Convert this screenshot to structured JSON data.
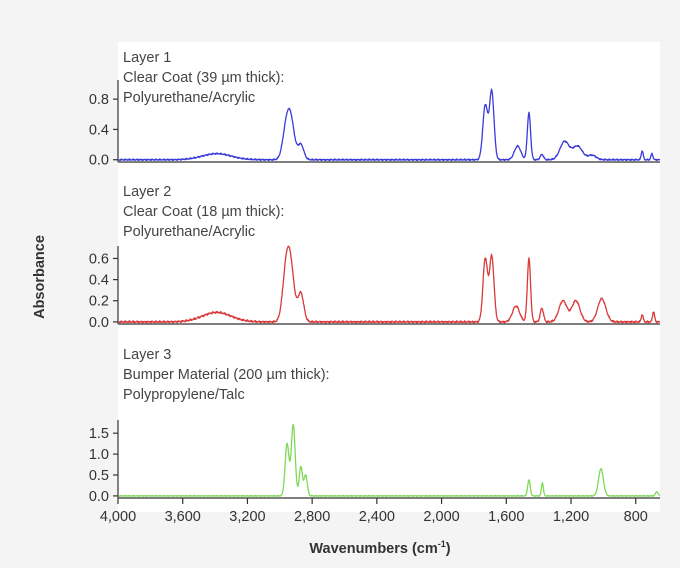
{
  "chart_data": {
    "type": "line",
    "y_axis_title": "Absorbance",
    "x_axis": {
      "title": "Wavenumbers (cm",
      "title_superscript": "-1",
      "title_suffix": ")",
      "range": [
        4000,
        650
      ],
      "reversed": true,
      "ticks": [
        4000,
        3600,
        3200,
        2800,
        2400,
        2000,
        1600,
        1200,
        800
      ],
      "tick_labels": [
        "4,000",
        "3,600",
        "3,200",
        "2,800",
        "2,400",
        "2,000",
        "1,600",
        "1,200",
        "800"
      ]
    },
    "panels": [
      {
        "label_lines": [
          "Layer 1",
          "Clear Coat (39 µm thick):",
          "Polyurethane/Acrylic"
        ],
        "color": "#3b3bdb",
        "ylim": [
          -0.03,
          1.0
        ],
        "y_ticks": [
          0.0,
          0.4,
          0.8
        ],
        "y_tick_labels": [
          "0.0",
          "0.4",
          "0.8"
        ],
        "peaks": [
          {
            "x": 3390,
            "h": 0.08,
            "w": 90
          },
          {
            "x": 2960,
            "h": 0.4,
            "w": 22
          },
          {
            "x": 2930,
            "h": 0.45,
            "w": 22
          },
          {
            "x": 2870,
            "h": 0.2,
            "w": 18
          },
          {
            "x": 1730,
            "h": 0.72,
            "w": 15
          },
          {
            "x": 1690,
            "h": 0.9,
            "w": 14
          },
          {
            "x": 1530,
            "h": 0.18,
            "w": 20
          },
          {
            "x": 1460,
            "h": 0.62,
            "w": 10
          },
          {
            "x": 1380,
            "h": 0.07,
            "w": 10
          },
          {
            "x": 1240,
            "h": 0.24,
            "w": 28
          },
          {
            "x": 1160,
            "h": 0.18,
            "w": 30
          },
          {
            "x": 1070,
            "h": 0.06,
            "w": 25
          },
          {
            "x": 760,
            "h": 0.12,
            "w": 6
          },
          {
            "x": 700,
            "h": 0.08,
            "w": 6
          }
        ]
      },
      {
        "label_lines": [
          "Layer 2",
          "Clear Coat (18 µm thick):",
          "Polyurethane/Acrylic"
        ],
        "color": "#d93a3a",
        "ylim": [
          -0.02,
          0.68
        ],
        "y_ticks": [
          0.0,
          0.2,
          0.4,
          0.6
        ],
        "y_tick_labels": [
          "0.0",
          "0.2",
          "0.4",
          "0.6"
        ],
        "peaks": [
          {
            "x": 3390,
            "h": 0.09,
            "w": 90
          },
          {
            "x": 2960,
            "h": 0.48,
            "w": 22
          },
          {
            "x": 2930,
            "h": 0.42,
            "w": 22
          },
          {
            "x": 2870,
            "h": 0.27,
            "w": 18
          },
          {
            "x": 1730,
            "h": 0.6,
            "w": 14
          },
          {
            "x": 1690,
            "h": 0.62,
            "w": 14
          },
          {
            "x": 1540,
            "h": 0.15,
            "w": 22
          },
          {
            "x": 1460,
            "h": 0.6,
            "w": 10
          },
          {
            "x": 1380,
            "h": 0.13,
            "w": 10
          },
          {
            "x": 1250,
            "h": 0.2,
            "w": 25
          },
          {
            "x": 1170,
            "h": 0.2,
            "w": 25
          },
          {
            "x": 1010,
            "h": 0.22,
            "w": 25
          },
          {
            "x": 760,
            "h": 0.07,
            "w": 6
          },
          {
            "x": 690,
            "h": 0.1,
            "w": 6
          }
        ]
      },
      {
        "label_lines": [
          "Layer 3",
          "Bumper Material (200 µm thick):",
          "Polypropylene/Talc"
        ],
        "color": "#7ed957",
        "ylim": [
          -0.05,
          1.72
        ],
        "y_ticks": [
          0.0,
          0.5,
          1.0,
          1.5
        ],
        "y_tick_labels": [
          "0.0",
          "0.5",
          "1.0",
          "1.5"
        ],
        "peaks": [
          {
            "x": 2955,
            "h": 1.25,
            "w": 12
          },
          {
            "x": 2917,
            "h": 1.7,
            "w": 12
          },
          {
            "x": 2870,
            "h": 0.7,
            "w": 10
          },
          {
            "x": 2840,
            "h": 0.5,
            "w": 10
          },
          {
            "x": 1460,
            "h": 0.38,
            "w": 8
          },
          {
            "x": 1377,
            "h": 0.32,
            "w": 6
          },
          {
            "x": 1015,
            "h": 0.65,
            "w": 15
          },
          {
            "x": 670,
            "h": 0.1,
            "w": 8
          }
        ]
      }
    ]
  }
}
